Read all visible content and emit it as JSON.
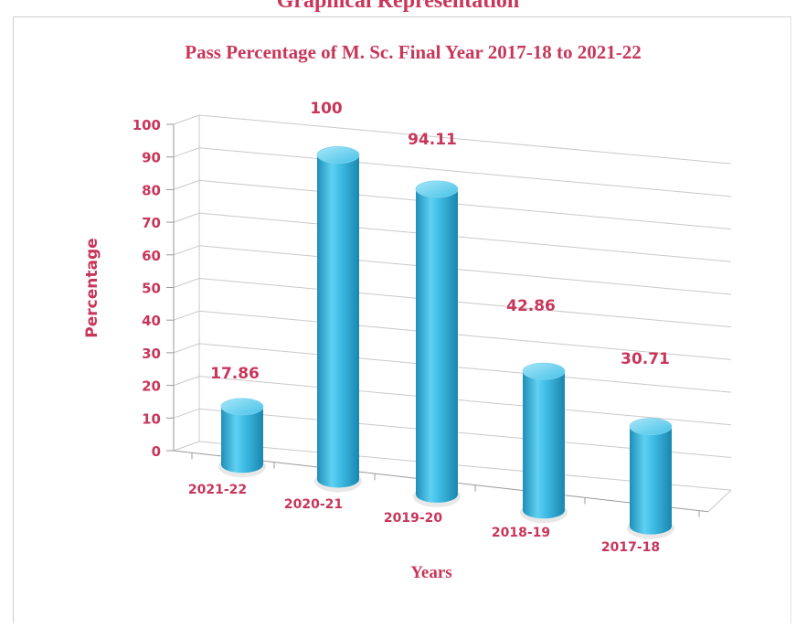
{
  "header": {
    "title": "Graphical Representation"
  },
  "chart_data": {
    "type": "bar",
    "title": "Pass Percentage of M. Sc. Final Year 2017-18 to 2021-22",
    "xlabel": "Years",
    "ylabel": "Percentage",
    "categories": [
      "2021-22",
      "2020-21",
      "2019-20",
      "2018-19",
      "2017-18"
    ],
    "values": [
      17.86,
      100,
      94.11,
      42.86,
      30.71
    ],
    "data_labels": [
      "17.86",
      "100",
      "94.11",
      "42.86",
      "30.71"
    ],
    "ylim": [
      0,
      100
    ],
    "yticks": [
      0,
      10,
      20,
      30,
      40,
      50,
      60,
      70,
      80,
      90,
      100
    ],
    "grid": true,
    "legend": "none",
    "colors": {
      "bar": "#3fbde6",
      "bar_dark": "#1f8fb8",
      "bar_light": "#8fdcf5",
      "text": "#c8365a",
      "grid": "#c9c9c9"
    }
  }
}
